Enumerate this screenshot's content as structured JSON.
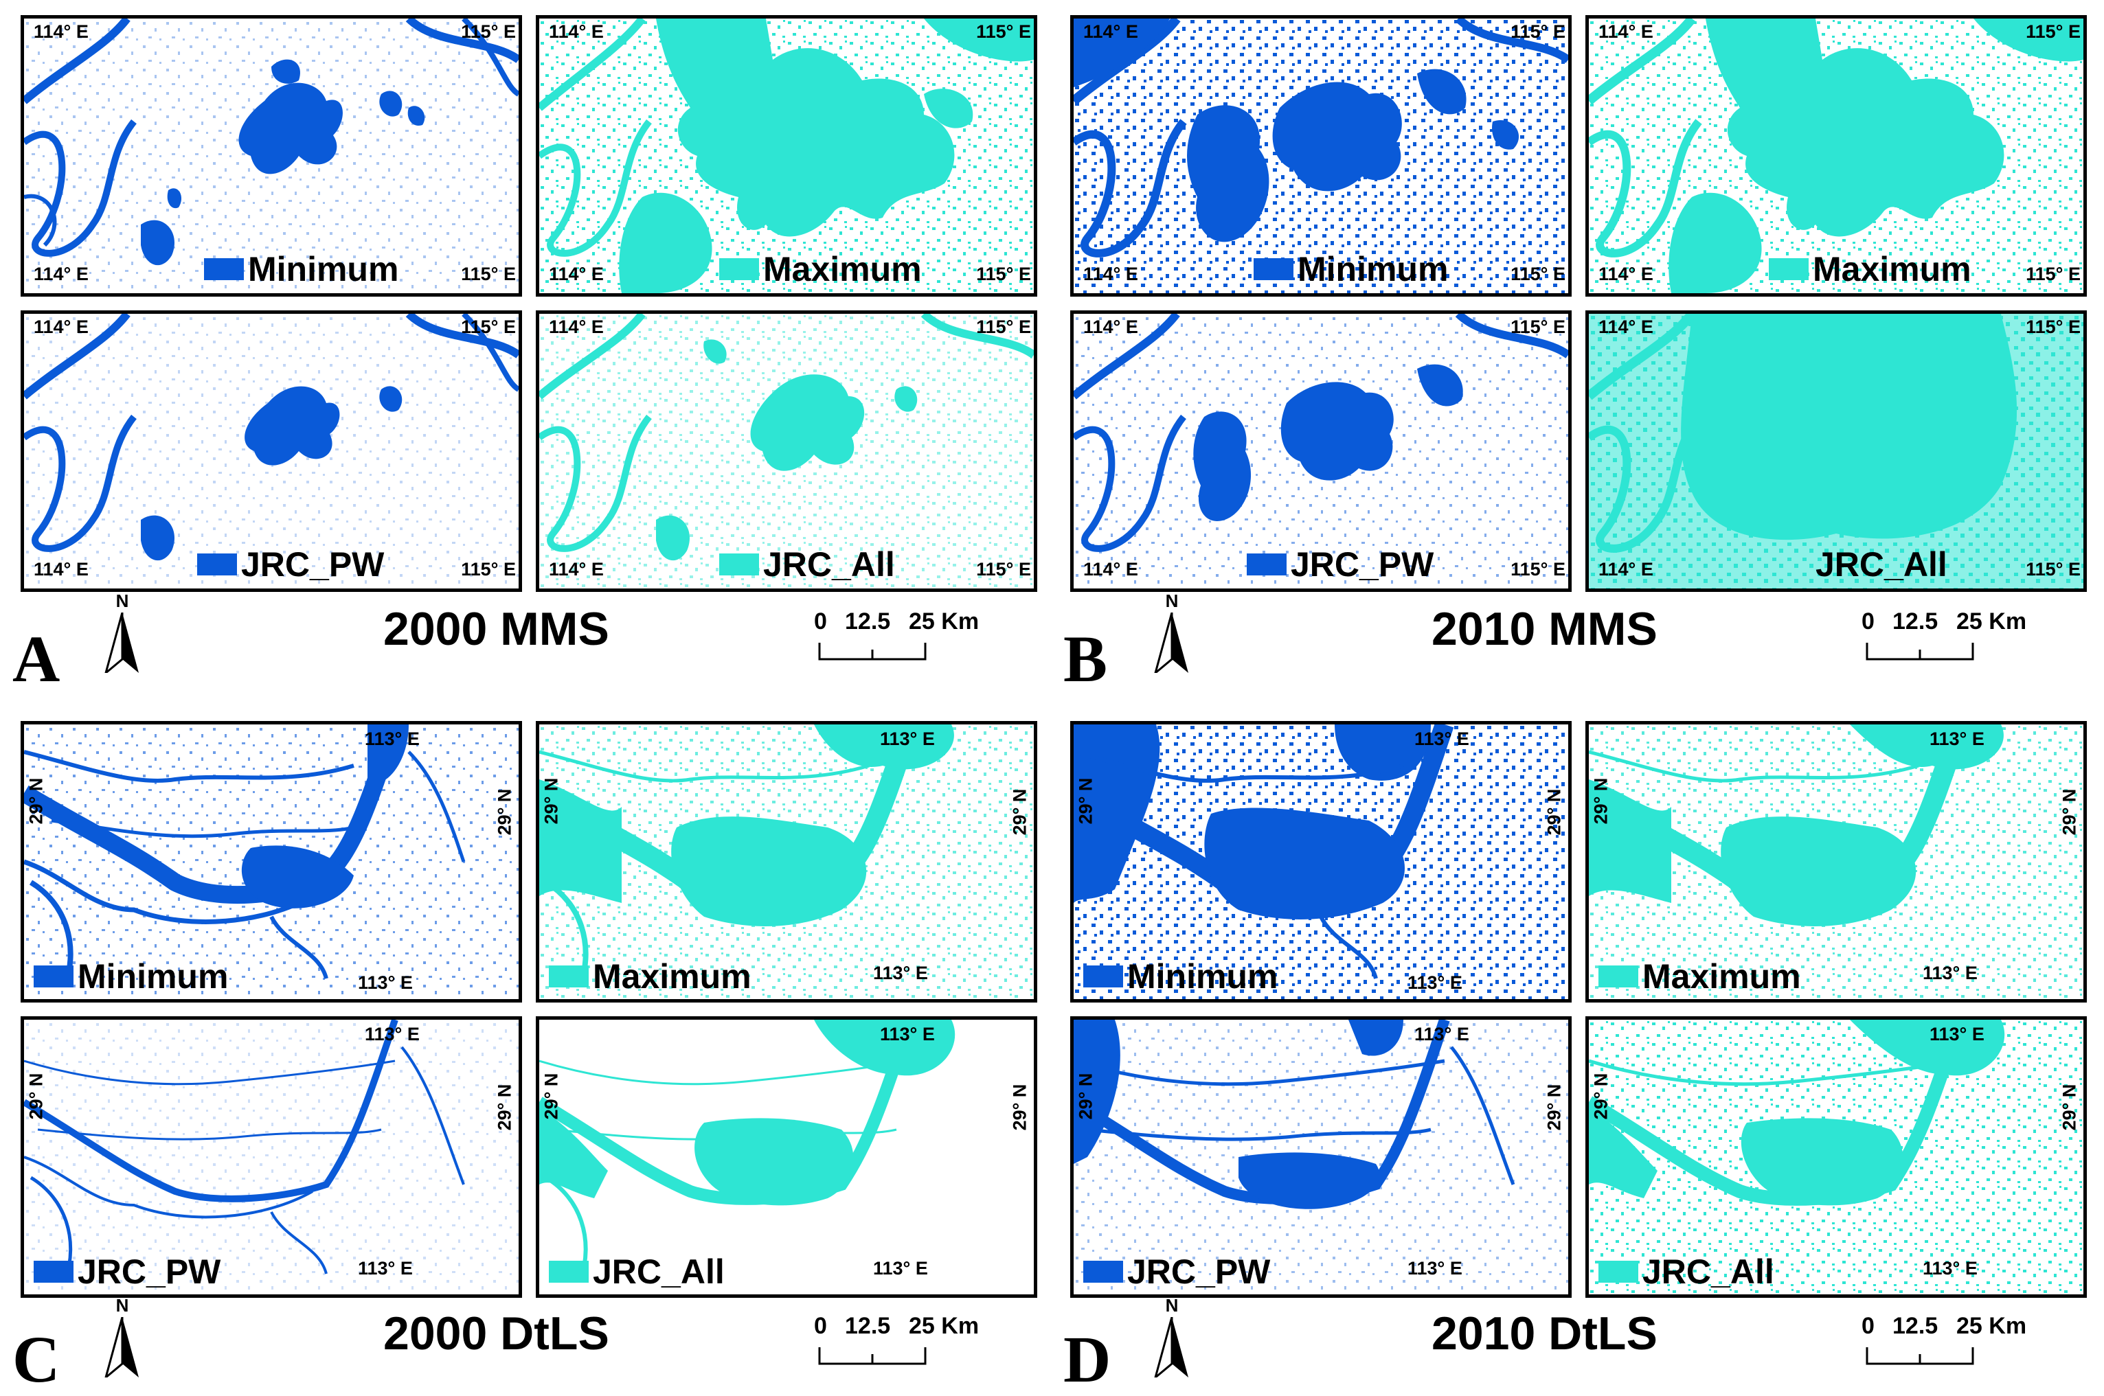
{
  "colors": {
    "dark_water": "#0a5ad8",
    "light_water": "#2ee5d3",
    "frame": "#000000"
  },
  "legend_labels": {
    "min": "Minimum",
    "max": "Maximum",
    "pw": "JRC_PW",
    "all": "JRC_All"
  },
  "coords": {
    "lon114": "114° E",
    "lon115": "115° E",
    "lon113": "113° E",
    "lat29": "29° N"
  },
  "panels": {
    "a": {
      "letter": "A",
      "title": "2000 MMS"
    },
    "b": {
      "letter": "B",
      "title": "2010 MMS"
    },
    "c": {
      "letter": "C",
      "title": "2000 DtLS"
    },
    "d": {
      "letter": "D",
      "title": "2010 DtLS"
    }
  },
  "north_label": "N",
  "scale": {
    "t0": "0",
    "t1": "12.5",
    "t2": "25 Km"
  }
}
